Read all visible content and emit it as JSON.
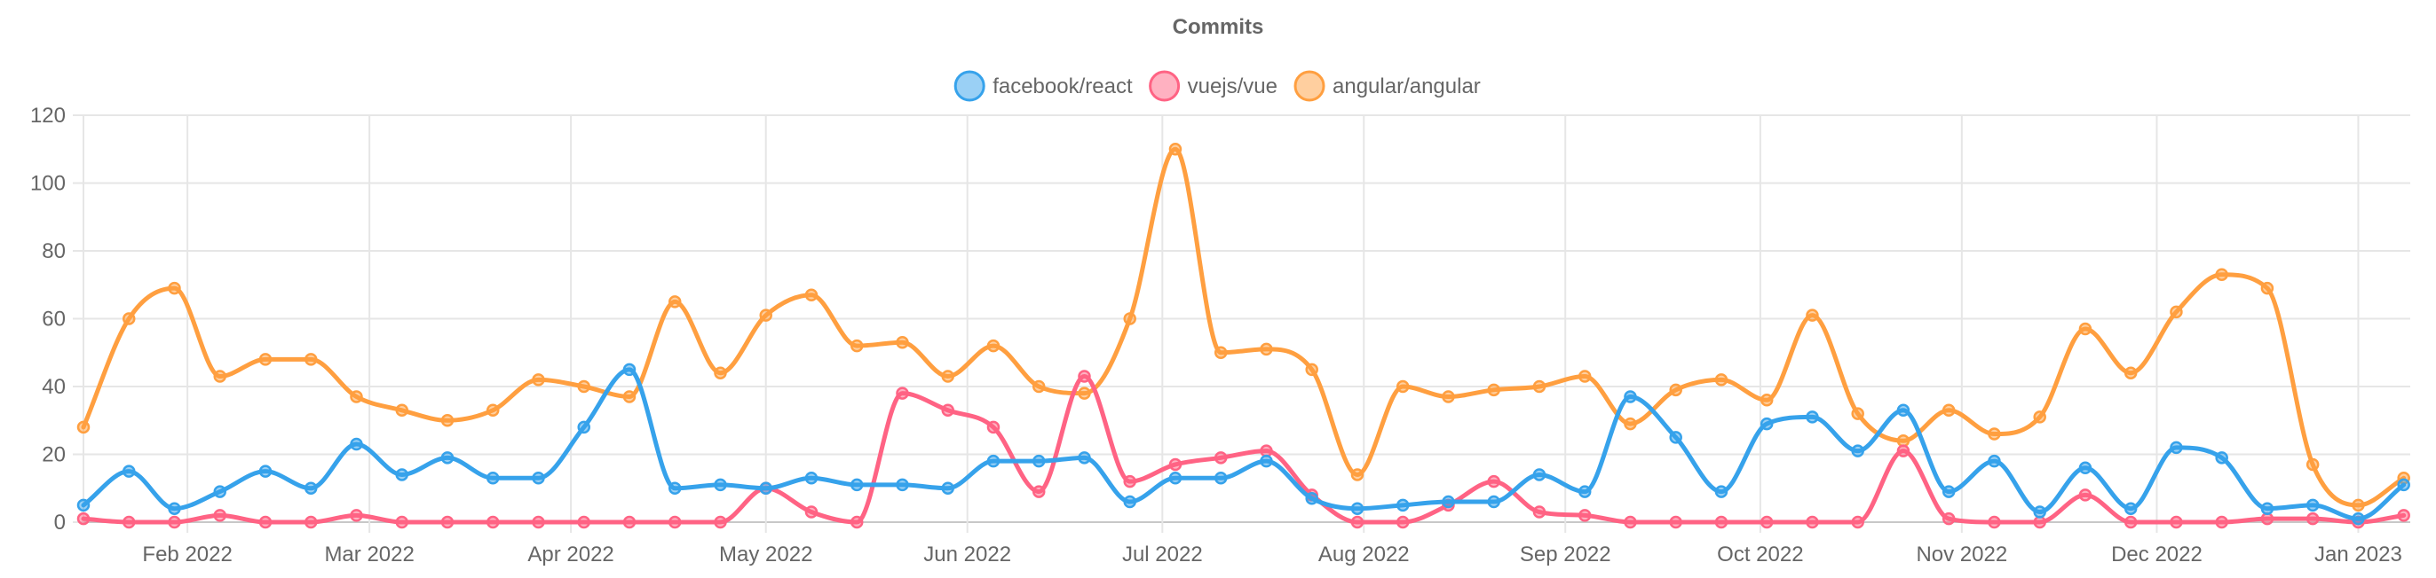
{
  "chart_data": {
    "type": "line",
    "title": "Commits",
    "legend_position": "top-center",
    "grid": true,
    "xlabel": "",
    "ylabel": "",
    "ylim": [
      0,
      120
    ],
    "y_ticks": [
      0,
      20,
      40,
      60,
      80,
      100,
      120
    ],
    "x_range": [
      "2022-01-16",
      "2023-01-09"
    ],
    "x_ticks": [
      {
        "date": "2022-02-01",
        "label": "Feb 2022"
      },
      {
        "date": "2022-03-01",
        "label": "Mar 2022"
      },
      {
        "date": "2022-04-01",
        "label": "Apr 2022"
      },
      {
        "date": "2022-05-01",
        "label": "May 2022"
      },
      {
        "date": "2022-06-01",
        "label": "Jun 2022"
      },
      {
        "date": "2022-07-01",
        "label": "Jul 2022"
      },
      {
        "date": "2022-08-01",
        "label": "Aug 2022"
      },
      {
        "date": "2022-09-01",
        "label": "Sep 2022"
      },
      {
        "date": "2022-10-01",
        "label": "Oct 2022"
      },
      {
        "date": "2022-11-01",
        "label": "Nov 2022"
      },
      {
        "date": "2022-12-01",
        "label": "Dec 2022"
      },
      {
        "date": "2023-01-01",
        "label": "Jan 2023"
      }
    ],
    "x": [
      "2022-01-16",
      "2022-01-23",
      "2022-01-30",
      "2022-02-06",
      "2022-02-13",
      "2022-02-20",
      "2022-02-27",
      "2022-03-06",
      "2022-03-13",
      "2022-03-20",
      "2022-03-27",
      "2022-04-03",
      "2022-04-10",
      "2022-04-17",
      "2022-04-24",
      "2022-05-01",
      "2022-05-08",
      "2022-05-15",
      "2022-05-22",
      "2022-05-29",
      "2022-06-05",
      "2022-06-12",
      "2022-06-19",
      "2022-06-26",
      "2022-07-03",
      "2022-07-10",
      "2022-07-17",
      "2022-07-24",
      "2022-07-31",
      "2022-08-07",
      "2022-08-14",
      "2022-08-21",
      "2022-08-28",
      "2022-09-04",
      "2022-09-11",
      "2022-09-18",
      "2022-09-25",
      "2022-10-02",
      "2022-10-09",
      "2022-10-16",
      "2022-10-23",
      "2022-10-30",
      "2022-11-06",
      "2022-11-13",
      "2022-11-20",
      "2022-11-27",
      "2022-12-04",
      "2022-12-11",
      "2022-12-18",
      "2022-12-25",
      "2023-01-01",
      "2023-01-08"
    ],
    "series": [
      {
        "name": "facebook/react",
        "color": "#36a2eb",
        "values": [
          5,
          15,
          4,
          9,
          15,
          10,
          23,
          14,
          19,
          13,
          13,
          28,
          45,
          10,
          11,
          10,
          13,
          11,
          11,
          10,
          18,
          18,
          19,
          6,
          13,
          13,
          18,
          7,
          4,
          5,
          6,
          6,
          14,
          9,
          37,
          25,
          9,
          29,
          31,
          21,
          33,
          9,
          18,
          3,
          16,
          4,
          22,
          19,
          4,
          5,
          1,
          11
        ]
      },
      {
        "name": "vuejs/vue",
        "color": "#ff6384",
        "values": [
          1,
          0,
          0,
          2,
          0,
          0,
          2,
          0,
          0,
          0,
          0,
          0,
          0,
          0,
          0,
          10,
          3,
          0,
          38,
          33,
          28,
          9,
          43,
          12,
          17,
          19,
          21,
          8,
          0,
          0,
          5,
          12,
          3,
          2,
          0,
          0,
          0,
          0,
          0,
          0,
          21,
          1,
          0,
          0,
          8,
          0,
          0,
          0,
          1,
          1,
          0,
          2
        ]
      },
      {
        "name": "angular/angular",
        "color": "#ff9f40",
        "values": [
          28,
          60,
          69,
          43,
          48,
          48,
          37,
          33,
          30,
          33,
          42,
          40,
          37,
          65,
          44,
          61,
          67,
          52,
          53,
          43,
          52,
          40,
          38,
          60,
          110,
          50,
          51,
          45,
          14,
          40,
          37,
          39,
          40,
          43,
          29,
          39,
          42,
          36,
          61,
          32,
          24,
          33,
          26,
          31,
          57,
          44,
          62,
          73,
          69,
          17,
          5,
          13
        ]
      }
    ]
  }
}
